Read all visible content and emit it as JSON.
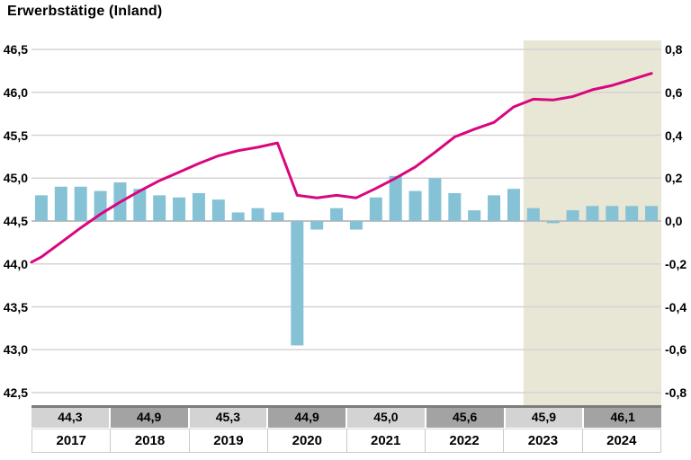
{
  "title": "Erwerbstätige (Inland)",
  "colors": {
    "bar": "#85c2d6",
    "line": "#d9067f",
    "forecast_bg": "#e8e6d4",
    "grid": "#d4d4d4",
    "baseline": "#c0c0c0",
    "cell_light": "#d3d3d3",
    "cell_dark": "#a3a3a3",
    "table_top_border": "#7c7c7c",
    "text": "#000000"
  },
  "chart_data": {
    "type": "bar+line",
    "title": "Erwerbstätige (Inland)",
    "grid": true,
    "legend": "none",
    "left_axis": {
      "min": 42.5,
      "max": 46.5,
      "step": 0.5,
      "ticks": [
        "46,5",
        "46,0",
        "45,5",
        "45,0",
        "44,5",
        "44,0",
        "43,5",
        "43,0",
        "42,5"
      ]
    },
    "right_axis": {
      "min": -0.8,
      "max": 0.8,
      "step": 0.2,
      "ticks": [
        "0,8",
        "0,6",
        "0,4",
        "0,2",
        "0,0",
        "-0,2",
        "-0,4",
        "-0,6",
        "-0,8"
      ]
    },
    "years": [
      "2017",
      "2018",
      "2019",
      "2020",
      "2021",
      "2022",
      "2023",
      "2024"
    ],
    "quarters_per_year": 4,
    "bar_series": {
      "axis": "right",
      "values": [
        0.12,
        0.16,
        0.16,
        0.14,
        0.18,
        0.15,
        0.12,
        0.11,
        0.13,
        0.1,
        0.04,
        0.06,
        0.04,
        -0.58,
        -0.04,
        0.06,
        -0.04,
        0.11,
        0.21,
        0.14,
        0.2,
        0.13,
        0.05,
        0.12,
        0.15,
        0.06,
        -0.01,
        0.05,
        0.07,
        0.07,
        0.07,
        0.07
      ]
    },
    "line_series": {
      "axis": "left",
      "edge_start_value": 44.02,
      "values": [
        44.08,
        44.25,
        44.42,
        44.58,
        44.72,
        44.85,
        44.97,
        45.07,
        45.17,
        45.26,
        45.32,
        45.36,
        45.41,
        44.8,
        44.77,
        44.8,
        44.77,
        44.88,
        45.0,
        45.13,
        45.3,
        45.48,
        45.57,
        45.65,
        45.83,
        45.92,
        45.91,
        45.95,
        46.03,
        46.08,
        46.15,
        46.22
      ]
    },
    "forecast": {
      "start_quarter_index": 25
    },
    "table": {
      "year_values": [
        "44,3",
        "44,9",
        "45,3",
        "44,9",
        "45,0",
        "45,6",
        "45,9",
        "46,1"
      ],
      "years": [
        "2017",
        "2018",
        "2019",
        "2020",
        "2021",
        "2022",
        "2023",
        "2024"
      ]
    }
  }
}
